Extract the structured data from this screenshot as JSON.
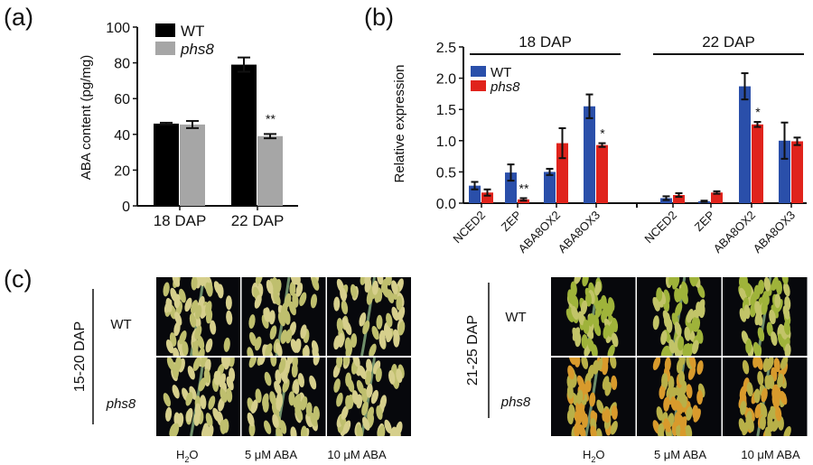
{
  "panels": {
    "a": {
      "label": "(a)"
    },
    "b": {
      "label": "(b)"
    },
    "c": {
      "label": "(c)"
    }
  },
  "chart_data": [
    {
      "type": "bar",
      "panel": "a",
      "ylabel": "ABA content (pg/mg)",
      "ylim": [
        0,
        100
      ],
      "yticks": [
        "0",
        "20",
        "40",
        "60",
        "80",
        "100"
      ],
      "categories": [
        "18 DAP",
        "22 DAP"
      ],
      "series": [
        {
          "name": "WT",
          "color": "#000000",
          "values": [
            46,
            79
          ],
          "errors": [
            0.5,
            4
          ]
        },
        {
          "name": "phs8",
          "color": "#a6a6a6",
          "values": [
            45.5,
            39
          ],
          "errors": [
            2,
            1.2
          ]
        }
      ],
      "annotations": [
        {
          "category": "22 DAP",
          "series": "phs8",
          "text": "**"
        }
      ],
      "legend": "top-left"
    },
    {
      "type": "bar",
      "panel": "b",
      "ylabel": "Relative expression",
      "ylim": [
        0,
        2.5
      ],
      "yticks": [
        "0.0",
        "0.5",
        "1.0",
        "1.5",
        "2.0",
        "2.5"
      ],
      "groups": [
        {
          "label": "18 DAP",
          "categories": [
            "NCED2",
            "ZEP",
            "ABA8OX2",
            "ABA8OX3"
          ],
          "WT": [
            0.28,
            0.49,
            0.5,
            1.55
          ],
          "WT_err": [
            0.06,
            0.13,
            0.05,
            0.19
          ],
          "phs8": [
            0.17,
            0.06,
            0.96,
            0.93
          ],
          "phs8_err": [
            0.05,
            0.02,
            0.24,
            0.03
          ]
        },
        {
          "label": "22 DAP",
          "categories": [
            "NCED2",
            "ZEP",
            "ABA8OX2",
            "ABA8OX3"
          ],
          "WT": [
            0.08,
            0.03,
            1.87,
            1.0
          ],
          "WT_err": [
            0.03,
            0.01,
            0.21,
            0.29
          ],
          "phs8": [
            0.13,
            0.17,
            1.26,
            0.99
          ],
          "phs8_err": [
            0.03,
            0.02,
            0.04,
            0.06
          ]
        }
      ],
      "series": [
        {
          "name": "WT",
          "color": "#2a4faa"
        },
        {
          "name": "phs8",
          "color": "#e0231c"
        }
      ],
      "annotations": [
        {
          "group": "18 DAP",
          "category": "ZEP",
          "series": "phs8",
          "text": "**"
        },
        {
          "group": "18 DAP",
          "category": "ABA8OX3",
          "series": "phs8",
          "text": "*"
        },
        {
          "group": "22 DAP",
          "category": "ABA8OX2",
          "series": "phs8",
          "text": "*"
        }
      ],
      "legend": "top-left"
    }
  ],
  "photos": {
    "left": {
      "stage": "15-20 DAP",
      "rows": [
        "WT",
        "phs8"
      ]
    },
    "right": {
      "stage": "21-25 DAP",
      "rows": [
        "WT",
        "phs8"
      ]
    },
    "treatments": [
      "H",
      "2",
      "O",
      "5 μM ABA",
      "10 μM ABA"
    ]
  }
}
